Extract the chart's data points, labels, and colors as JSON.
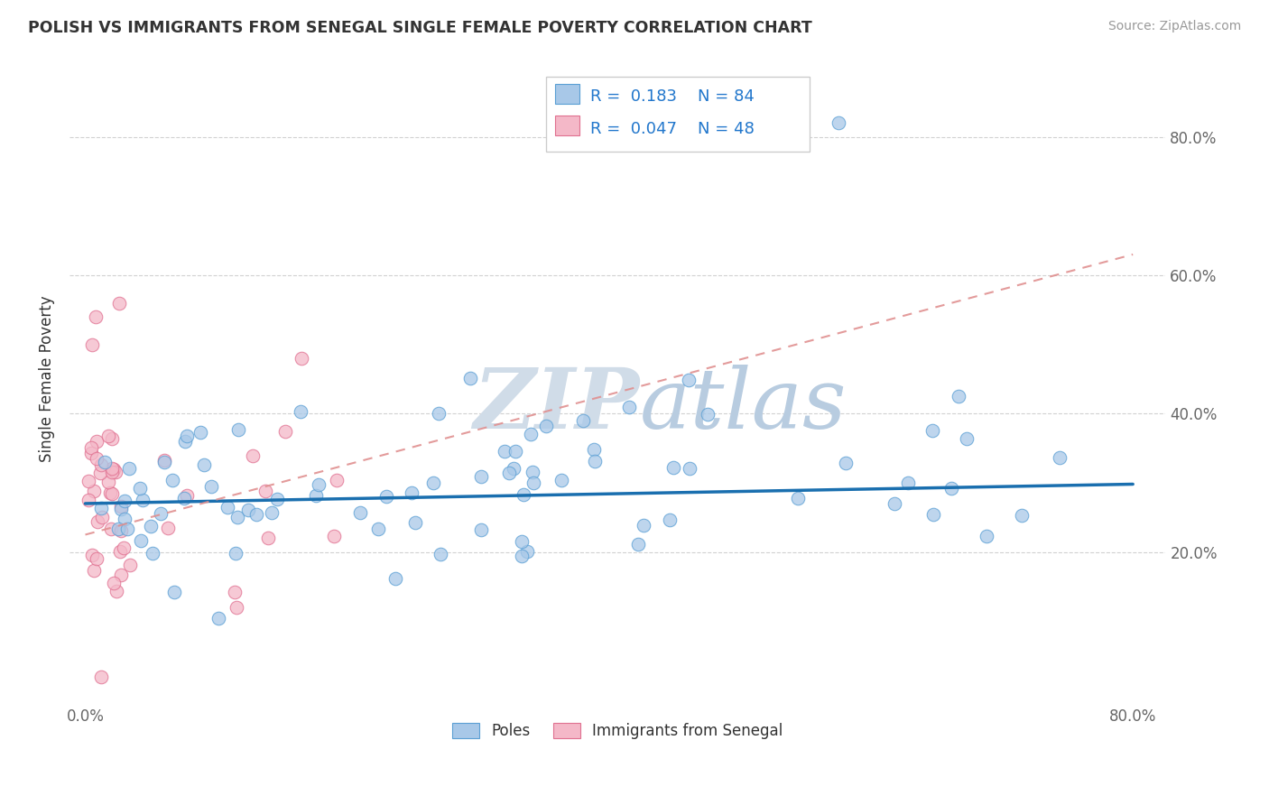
{
  "title": "POLISH VS IMMIGRANTS FROM SENEGAL SINGLE FEMALE POVERTY CORRELATION CHART",
  "source": "Source: ZipAtlas.com",
  "ylabel": "Single Female Poverty",
  "R_blue": 0.183,
  "N_blue": 84,
  "R_pink": 0.047,
  "N_pink": 48,
  "blue_color": "#a8c8e8",
  "blue_edge_color": "#5a9fd4",
  "pink_color": "#f4b8c8",
  "pink_edge_color": "#e07090",
  "blue_line_color": "#1a6faf",
  "pink_line_color": "#e09090",
  "watermark_color": "#d0dce8",
  "legend_labels": [
    "Poles",
    "Immigrants from Senegal"
  ],
  "grid_color": "#cccccc",
  "title_color": "#333333",
  "tick_color": "#666666",
  "source_color": "#999999"
}
